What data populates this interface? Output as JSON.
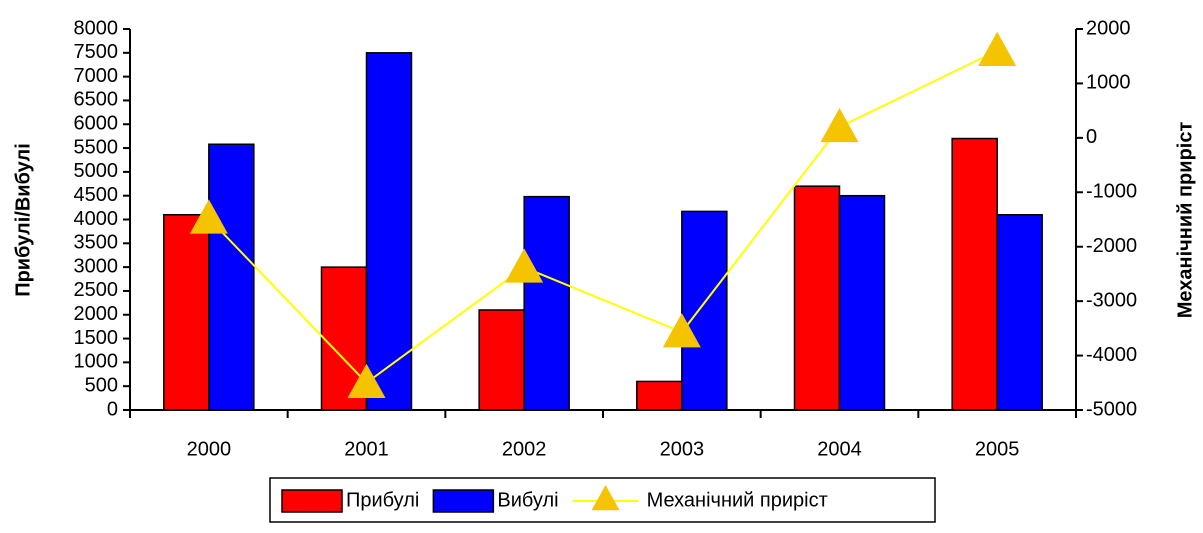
{
  "chart_data": {
    "type": "bar-line",
    "categories": [
      "2000",
      "2001",
      "2002",
      "2003",
      "2004",
      "2005"
    ],
    "series": [
      {
        "name": "Прибулі",
        "color": "#ff0000",
        "type": "bar",
        "values": [
          4100,
          3000,
          2100,
          600,
          4700,
          5700
        ]
      },
      {
        "name": "Вибулі",
        "color": "#0000ff",
        "type": "bar",
        "values": [
          5580,
          7500,
          4480,
          4170,
          4500,
          4100
        ]
      },
      {
        "name": "Механічний приріст",
        "color": "#ffff00",
        "marker_color": "#f5c400",
        "type": "line",
        "axis": "y2",
        "values": [
          -1480,
          -4500,
          -2380,
          -3570,
          200,
          1600
        ]
      }
    ],
    "ylabel": "Прибулі/Вибулі",
    "y2label": "Механічний приріст",
    "ylim": [
      0,
      8000
    ],
    "yticks": [
      0,
      500,
      1000,
      1500,
      2000,
      2500,
      3000,
      3500,
      4000,
      4500,
      5000,
      5500,
      6000,
      6500,
      7000,
      7500,
      8000
    ],
    "y2lim": [
      -5000,
      2000
    ],
    "y2ticks": [
      -5000,
      -4000,
      -3000,
      -2000,
      -1000,
      0,
      1000,
      2000
    ],
    "grid": false,
    "legend": "bottom"
  }
}
